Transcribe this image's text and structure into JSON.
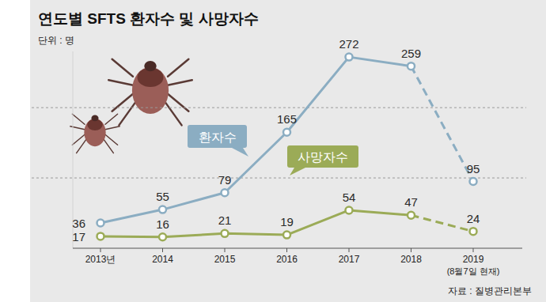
{
  "chart_data": {
    "type": "line",
    "title": "연도별 SFTS 환자수 및 사망자수",
    "subtitle": "단위 : 명",
    "source": "자료 : 질병관리본부",
    "categories": [
      "2013년",
      "2014",
      "2015",
      "2016",
      "2017",
      "2018",
      "2019"
    ],
    "annotations": [
      {
        "text": "(8월7일 현재)",
        "category": "2019"
      }
    ],
    "series": [
      {
        "name": "환자수",
        "color": "#8badc2",
        "values": [
          36,
          55,
          79,
          165,
          272,
          259,
          95
        ]
      },
      {
        "name": "사망자수",
        "color": "#9bab57",
        "values": [
          17,
          16,
          21,
          19,
          54,
          47,
          24
        ]
      }
    ],
    "ylim": [
      0,
      280
    ],
    "yticks": [
      0,
      100,
      200
    ],
    "grid": true,
    "data_labels": true,
    "tick_labels": "x",
    "marker": "circle"
  }
}
